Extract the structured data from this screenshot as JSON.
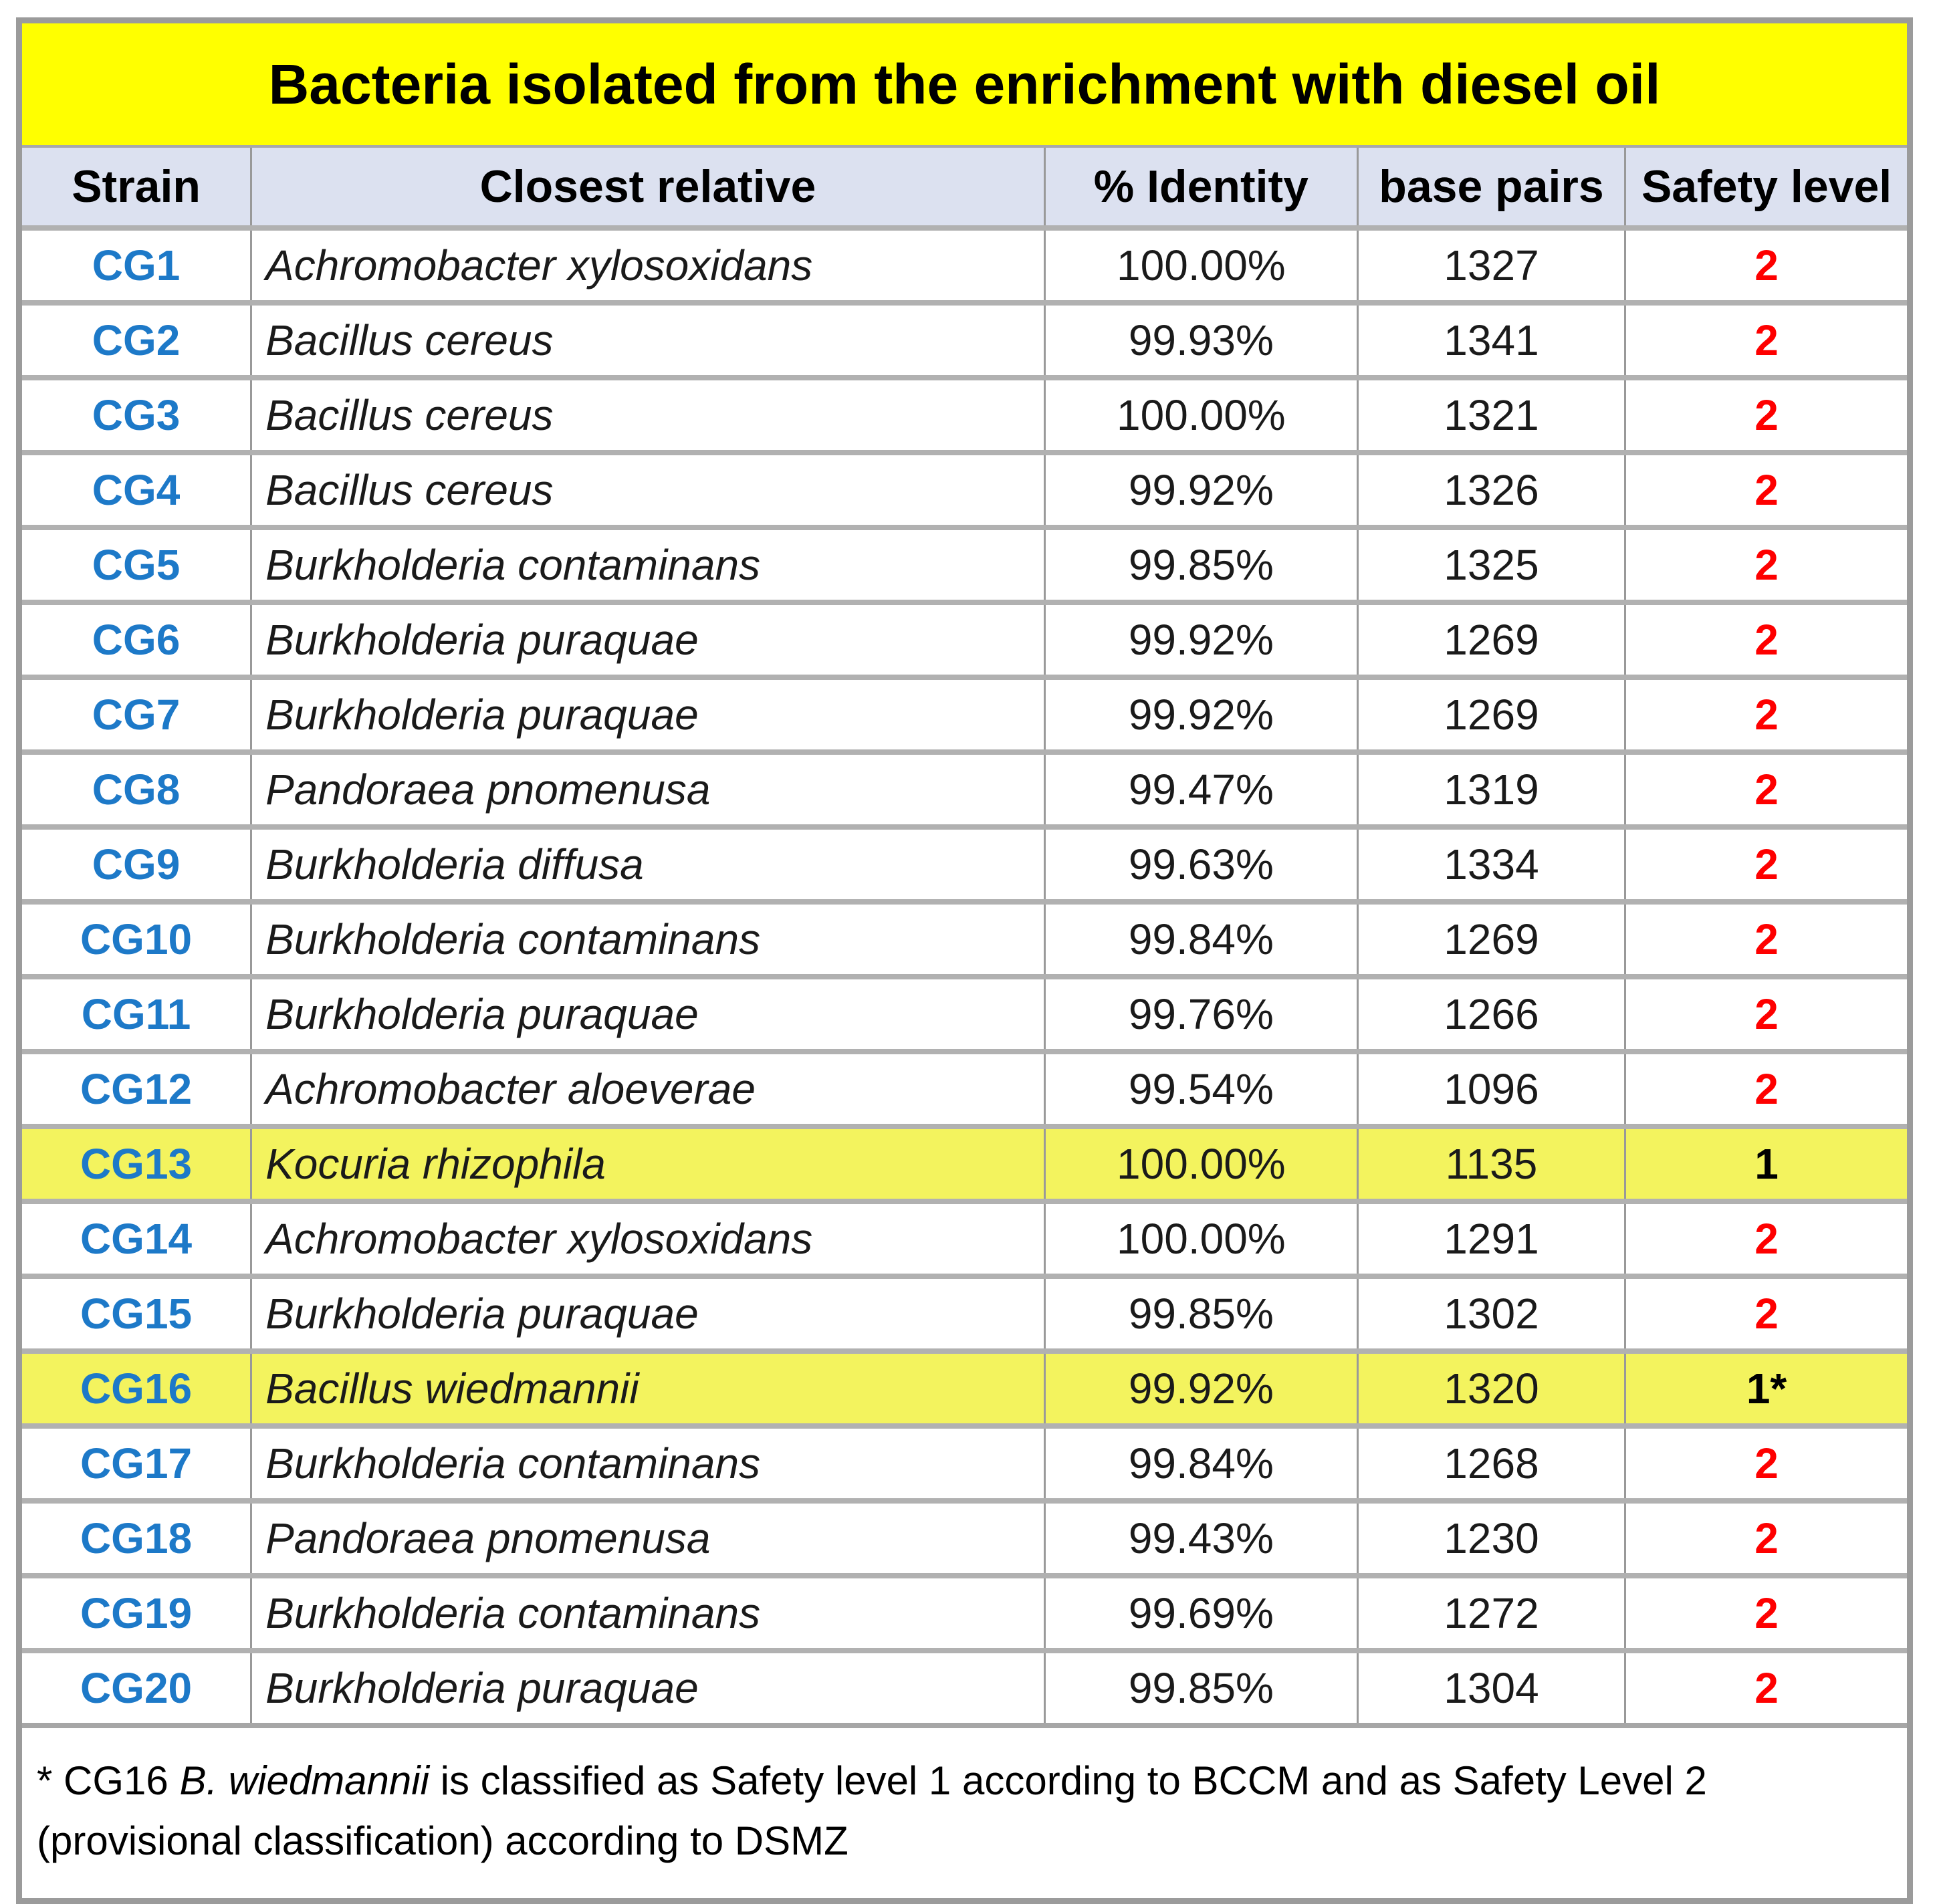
{
  "title": "Bacteria isolated from the enrichment with diesel oil",
  "columns": [
    "Strain",
    "Closest relative",
    "% Identity",
    "base pairs",
    "Safety level"
  ],
  "rows": [
    {
      "strain": "CG1",
      "relative": "Achromobacter xylosoxidans",
      "identity": "100.00%",
      "base_pairs": "1327",
      "safety": "2",
      "safety_color": "red",
      "highlight": false
    },
    {
      "strain": "CG2",
      "relative": "Bacillus cereus",
      "identity": "99.93%",
      "base_pairs": "1341",
      "safety": "2",
      "safety_color": "red",
      "highlight": false
    },
    {
      "strain": "CG3",
      "relative": "Bacillus cereus",
      "identity": "100.00%",
      "base_pairs": "1321",
      "safety": "2",
      "safety_color": "red",
      "highlight": false
    },
    {
      "strain": "CG4",
      "relative": "Bacillus cereus",
      "identity": "99.92%",
      "base_pairs": "1326",
      "safety": "2",
      "safety_color": "red",
      "highlight": false
    },
    {
      "strain": "CG5",
      "relative": "Burkholderia contaminans",
      "identity": "99.85%",
      "base_pairs": "1325",
      "safety": "2",
      "safety_color": "red",
      "highlight": false
    },
    {
      "strain": "CG6",
      "relative": "Burkholderia puraquae",
      "identity": "99.92%",
      "base_pairs": "1269",
      "safety": "2",
      "safety_color": "red",
      "highlight": false
    },
    {
      "strain": "CG7",
      "relative": "Burkholderia puraquae",
      "identity": "99.92%",
      "base_pairs": "1269",
      "safety": "2",
      "safety_color": "red",
      "highlight": false
    },
    {
      "strain": "CG8",
      "relative": "Pandoraea pnomenusa",
      "identity": "99.47%",
      "base_pairs": "1319",
      "safety": "2",
      "safety_color": "red",
      "highlight": false
    },
    {
      "strain": "CG9",
      "relative": "Burkholderia diffusa",
      "identity": "99.63%",
      "base_pairs": "1334",
      "safety": "2",
      "safety_color": "red",
      "highlight": false
    },
    {
      "strain": "CG10",
      "relative": "Burkholderia contaminans",
      "identity": "99.84%",
      "base_pairs": "1269",
      "safety": "2",
      "safety_color": "red",
      "highlight": false
    },
    {
      "strain": "CG11",
      "relative": "Burkholderia puraquae",
      "identity": "99.76%",
      "base_pairs": "1266",
      "safety": "2",
      "safety_color": "red",
      "highlight": false
    },
    {
      "strain": "CG12",
      "relative": "Achromobacter aloeverae",
      "identity": "99.54%",
      "base_pairs": "1096",
      "safety": "2",
      "safety_color": "red",
      "highlight": false
    },
    {
      "strain": "CG13",
      "relative": "Kocuria rhizophila",
      "identity": "100.00%",
      "base_pairs": "1135",
      "safety": "1",
      "safety_color": "black",
      "highlight": true
    },
    {
      "strain": "CG14",
      "relative": "Achromobacter xylosoxidans",
      "identity": "100.00%",
      "base_pairs": "1291",
      "safety": "2",
      "safety_color": "red",
      "highlight": false
    },
    {
      "strain": "CG15",
      "relative": "Burkholderia puraquae",
      "identity": "99.85%",
      "base_pairs": "1302",
      "safety": "2",
      "safety_color": "red",
      "highlight": false
    },
    {
      "strain": "CG16",
      "relative": "Bacillus wiedmannii",
      "identity": "99.92%",
      "base_pairs": "1320",
      "safety": "1*",
      "safety_color": "black",
      "highlight": true
    },
    {
      "strain": "CG17",
      "relative": "Burkholderia contaminans",
      "identity": "99.84%",
      "base_pairs": "1268",
      "safety": "2",
      "safety_color": "red",
      "highlight": false
    },
    {
      "strain": "CG18",
      "relative": "Pandoraea pnomenusa",
      "identity": "99.43%",
      "base_pairs": "1230",
      "safety": "2",
      "safety_color": "red",
      "highlight": false
    },
    {
      "strain": "CG19",
      "relative": "Burkholderia contaminans",
      "identity": "99.69%",
      "base_pairs": "1272",
      "safety": "2",
      "safety_color": "red",
      "highlight": false
    },
    {
      "strain": "CG20",
      "relative": "Burkholderia puraquae",
      "identity": "99.85%",
      "base_pairs": "1304",
      "safety": "2",
      "safety_color": "red",
      "highlight": false
    }
  ],
  "footnote": {
    "prefix": "* CG16 ",
    "italic": "B. wiedmannii",
    "line1_rest": " is classified as Safety level 1 according to BCCM and as Safety Level 2",
    "line2": "(provisional classification) according to DSMZ"
  },
  "colors": {
    "title_bg": "#ffff00",
    "header_bg": "#dce1f0",
    "highlight_bg": "#f3f35e",
    "strain_blue": "#1d79c8",
    "safety_red": "#fe0000"
  },
  "chart_data": {
    "type": "table",
    "title": "Bacteria isolated from the enrichment with diesel oil",
    "columns": [
      "Strain",
      "Closest relative",
      "% Identity",
      "base pairs",
      "Safety level"
    ],
    "rows": [
      [
        "CG1",
        "Achromobacter xylosoxidans",
        "100.00%",
        1327,
        "2"
      ],
      [
        "CG2",
        "Bacillus cereus",
        "99.93%",
        1341,
        "2"
      ],
      [
        "CG3",
        "Bacillus cereus",
        "100.00%",
        1321,
        "2"
      ],
      [
        "CG4",
        "Bacillus cereus",
        "99.92%",
        1326,
        "2"
      ],
      [
        "CG5",
        "Burkholderia contaminans",
        "99.85%",
        1325,
        "2"
      ],
      [
        "CG6",
        "Burkholderia puraquae",
        "99.92%",
        1269,
        "2"
      ],
      [
        "CG7",
        "Burkholderia puraquae",
        "99.92%",
        1269,
        "2"
      ],
      [
        "CG8",
        "Pandoraea pnomenusa",
        "99.47%",
        1319,
        "2"
      ],
      [
        "CG9",
        "Burkholderia diffusa",
        "99.63%",
        1334,
        "2"
      ],
      [
        "CG10",
        "Burkholderia contaminans",
        "99.84%",
        1269,
        "2"
      ],
      [
        "CG11",
        "Burkholderia puraquae",
        "99.76%",
        1266,
        "2"
      ],
      [
        "CG12",
        "Achromobacter aloeverae",
        "99.54%",
        1096,
        "2"
      ],
      [
        "CG13",
        "Kocuria rhizophila",
        "100.00%",
        1135,
        "1"
      ],
      [
        "CG14",
        "Achromobacter xylosoxidans",
        "100.00%",
        1291,
        "2"
      ],
      [
        "CG15",
        "Burkholderia puraquae",
        "99.85%",
        1302,
        "2"
      ],
      [
        "CG16",
        "Bacillus wiedmannii",
        "99.92%",
        1320,
        "1*"
      ],
      [
        "CG17",
        "Burkholderia contaminans",
        "99.84%",
        1268,
        "2"
      ],
      [
        "CG18",
        "Pandoraea pnomenusa",
        "99.43%",
        1230,
        "2"
      ],
      [
        "CG19",
        "Burkholderia contaminans",
        "99.69%",
        1272,
        "2"
      ],
      [
        "CG20",
        "Burkholderia puraquae",
        "99.85%",
        1304,
        "2"
      ]
    ],
    "highlighted_rows": [
      "CG13",
      "CG16"
    ],
    "footnote": "* CG16 B. wiedmannii is classified as Safety level 1 according to BCCM and as Safety Level 2 (provisional classification) according to DSMZ"
  }
}
